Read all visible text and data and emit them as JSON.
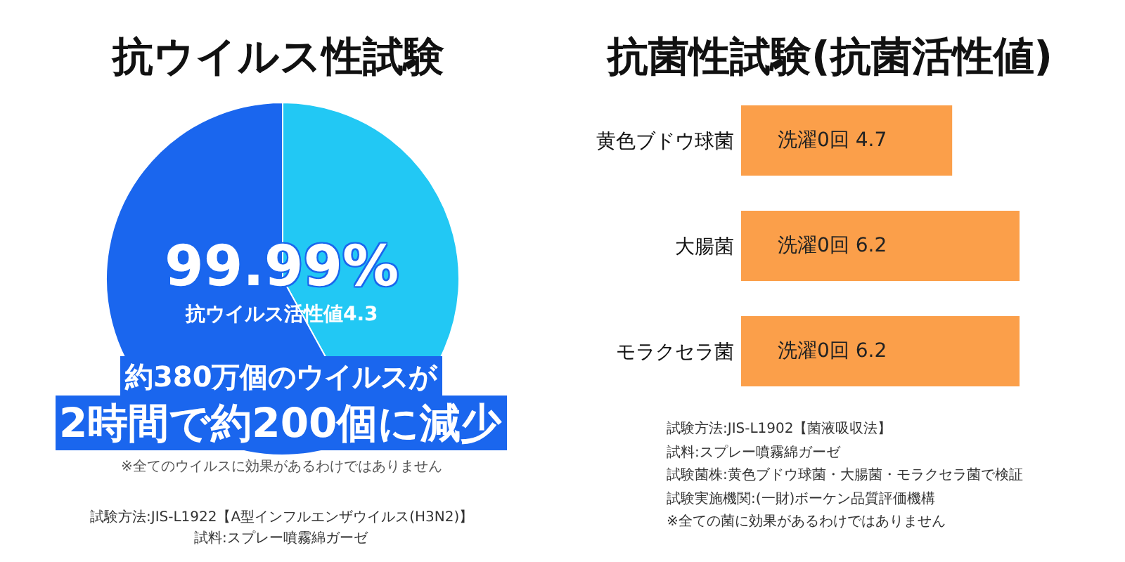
{
  "chart_data": [
    {
      "type": "pie",
      "title": "抗ウイルス性試験",
      "categories": [
        null,
        null
      ],
      "values": [
        42,
        58
      ],
      "colors": [
        "#22c8f4",
        "#1a66ee"
      ],
      "annotations": [
        "99.99%",
        "抗ウイルス活性値4.3",
        "約380万個のウイルスが",
        "2時間で約200個に減少",
        "※全てのウイルスに効果があるわけではありません",
        "試験方法:JIS-L1922【A型インフルエンザウイルス(H3N2)】",
        "試料:スプレー噴霧綿ガーゼ"
      ]
    },
    {
      "type": "bar",
      "orientation": "horizontal",
      "title": "抗菌性試験(抗菌活性値)",
      "categories": [
        "黄色ブドウ球菌",
        "大腸菌",
        "モラクセラ菌"
      ],
      "values": [
        4.7,
        6.2,
        6.2
      ],
      "color": "#fb9f4a",
      "value_labels": [
        "洗濯0回 4.7",
        "洗濯0回 6.2",
        "洗濯0回 6.2"
      ],
      "annotations": [
        "試験方法:JIS-L1902【菌液吸収法】",
        "試料:スプレー噴霧綿ガーゼ",
        "試験菌株:黄色ブドウ球菌・大腸菌・モラクセラ菌で検証",
        "試験実施機関:(一財)ボーケン品質評価機構",
        "※全ての菌に効果があるわけではありません"
      ]
    }
  ]
}
